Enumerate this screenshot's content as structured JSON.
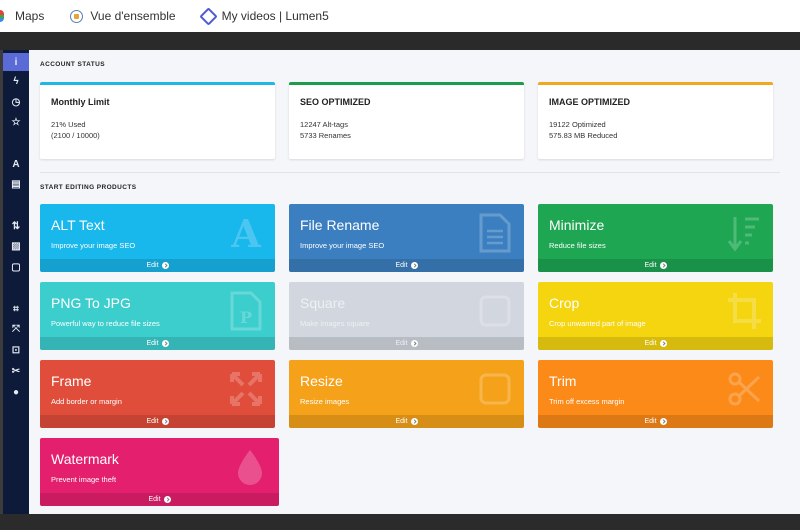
{
  "bookmarks": [
    {
      "label": "Maps",
      "icon": "maps-icon"
    },
    {
      "label": "Vue d'ensemble",
      "icon": "globe-icon"
    },
    {
      "label": "My videos | Lumen5",
      "icon": "lumen5-icon"
    }
  ],
  "sidebar": {
    "items": [
      {
        "name": "info-icon",
        "glyph": "i"
      },
      {
        "name": "lightning-icon",
        "glyph": "ϟ"
      },
      {
        "name": "clock-icon",
        "glyph": "◷"
      },
      {
        "name": "star-icon",
        "glyph": "☆"
      },
      {
        "name": "font-icon",
        "glyph": "A"
      },
      {
        "name": "file-text-icon",
        "glyph": "▤"
      },
      {
        "name": "sort-icon",
        "glyph": "⇅"
      },
      {
        "name": "file-image-icon",
        "glyph": "▨"
      },
      {
        "name": "square-icon",
        "glyph": "▢"
      },
      {
        "name": "crop-icon",
        "glyph": "⌗"
      },
      {
        "name": "expand-icon",
        "glyph": "⤧"
      },
      {
        "name": "frame-icon",
        "glyph": "⊡"
      },
      {
        "name": "scissors-icon",
        "glyph": "✂"
      },
      {
        "name": "tint-icon",
        "glyph": "●"
      }
    ]
  },
  "account": {
    "section_title": "ACCOUNT STATUS",
    "cards": [
      {
        "title": "Monthly Limit",
        "line1": "21% Used",
        "line2": "(2100 / 10000)",
        "color": "#1fb6e8"
      },
      {
        "title": "SEO OPTIMIZED",
        "line1": "12247 Alt-tags",
        "line2": "5733 Renames",
        "color": "#1e9c4e"
      },
      {
        "title": "IMAGE OPTIMIZED",
        "line1": "19122 Optimized",
        "line2": "575.83 MB Reduced",
        "color": "#f0a81f"
      }
    ]
  },
  "editing": {
    "section_title": "START EDITING PRODUCTS",
    "edit_label": "Edit",
    "tiles": [
      {
        "name": "ALT Text",
        "desc": "Improve your image SEO",
        "color": "#18b7ec",
        "icon": "font-icon"
      },
      {
        "name": "File Rename",
        "desc": "Improve your image SEO",
        "color": "#3c7fc0",
        "icon": "file-text-icon"
      },
      {
        "name": "Minimize",
        "desc": "Reduce file sizes",
        "color": "#1ea653",
        "icon": "sort-icon"
      },
      {
        "name": "PNG To JPG",
        "desc": "Powerful way to reduce file sizes",
        "color": "#3ccdcd",
        "icon": "file-image-icon"
      },
      {
        "name": "Square",
        "desc": "Make images square",
        "color": "#d2d6de",
        "icon": "square-icon"
      },
      {
        "name": "Crop",
        "desc": "Crop unwanted part of image",
        "color": "#f5d410",
        "icon": "crop-icon"
      },
      {
        "name": "Frame",
        "desc": "Add border or margin",
        "color": "#e14d3b",
        "icon": "expand-icon"
      },
      {
        "name": "Resize",
        "desc": "Resize images",
        "color": "#f5a21a",
        "icon": "square-icon"
      },
      {
        "name": "Trim",
        "desc": "Trim off excess margin",
        "color": "#fb8a19",
        "icon": "scissors-icon"
      },
      {
        "name": "Watermark",
        "desc": "Prevent image theft",
        "color": "#e41f6e",
        "icon": "tint-icon"
      }
    ]
  }
}
